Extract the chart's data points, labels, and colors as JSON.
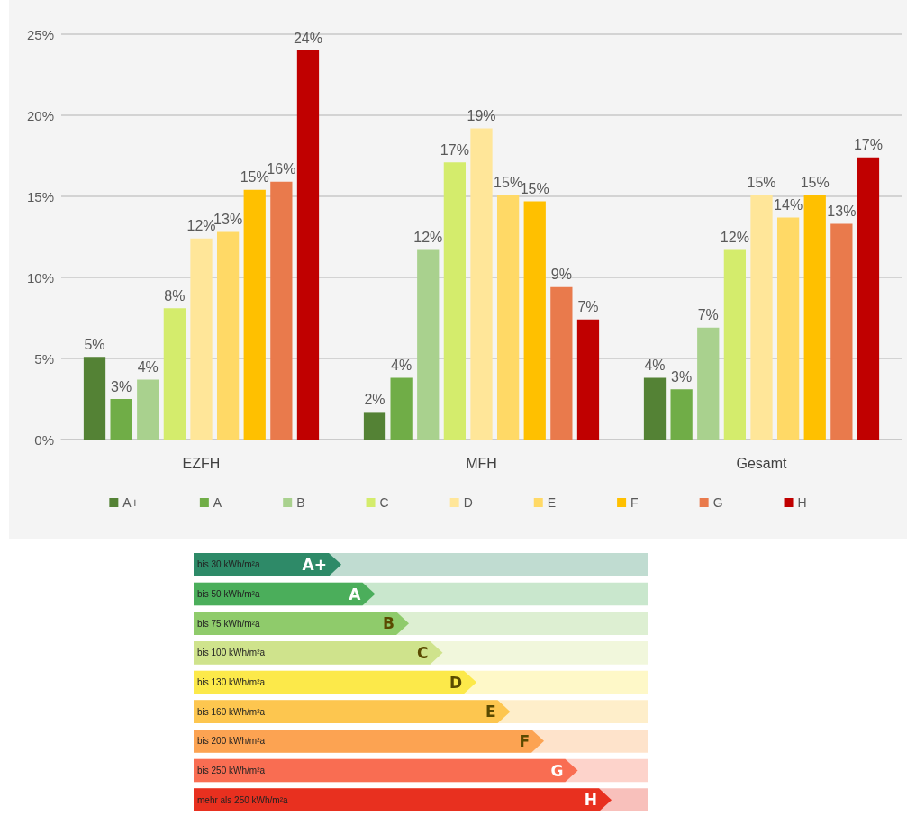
{
  "chart_data": [
    {
      "type": "bar",
      "categories": [
        "EZFH",
        "MFH",
        "Gesamt"
      ],
      "series": [
        {
          "name": "A+",
          "color": "#548235",
          "values": [
            5.1,
            1.7,
            3.8
          ],
          "value_labels": [
            "5%",
            "2%",
            "4%"
          ]
        },
        {
          "name": "A",
          "color": "#70ad47",
          "values": [
            2.5,
            3.8,
            3.1
          ],
          "value_labels": [
            "3%",
            "4%",
            "3%"
          ]
        },
        {
          "name": "B",
          "color": "#a9d18e",
          "values": [
            3.7,
            11.7,
            6.9
          ],
          "value_labels": [
            "4%",
            "12%",
            "7%"
          ]
        },
        {
          "name": "C",
          "color": "#d4ec6c",
          "values": [
            8.1,
            17.1,
            11.7
          ],
          "value_labels": [
            "8%",
            "17%",
            "12%"
          ]
        },
        {
          "name": "D",
          "color": "#ffe699",
          "values": [
            12.4,
            19.2,
            15.1
          ],
          "value_labels": [
            "12%",
            "19%",
            "15%"
          ]
        },
        {
          "name": "E",
          "color": "#ffd966",
          "values": [
            12.8,
            15.1,
            13.7
          ],
          "value_labels": [
            "13%",
            "15%",
            "14%"
          ]
        },
        {
          "name": "F",
          "color": "#ffc000",
          "values": [
            15.4,
            14.7,
            15.1
          ],
          "value_labels": [
            "15%",
            "15%",
            "15%"
          ]
        },
        {
          "name": "G",
          "color": "#e97a4c",
          "values": [
            15.9,
            9.4,
            13.3
          ],
          "value_labels": [
            "16%",
            "9%",
            "13%"
          ]
        },
        {
          "name": "H",
          "color": "#c00000",
          "values": [
            24.0,
            7.4,
            17.4
          ],
          "value_labels": [
            "24%",
            "7%",
            "17%"
          ]
        }
      ],
      "ylim": [
        0,
        25
      ],
      "yticks": [
        {
          "value": 0,
          "label": "0%"
        },
        {
          "value": 5,
          "label": "5%"
        },
        {
          "value": 10,
          "label": "10%"
        },
        {
          "value": 15,
          "label": "15%"
        },
        {
          "value": 20,
          "label": "20%"
        },
        {
          "value": 25,
          "label": "25%"
        }
      ],
      "grid": "y",
      "legend": "bottom"
    },
    {
      "type": "other",
      "categories": [
        "A+",
        "A",
        "B",
        "C",
        "D",
        "E",
        "F",
        "G",
        "H"
      ],
      "annotations": [
        "bis 30 kWh/m²a",
        "bis 50 kWh/m²a",
        "bis 75 kWh/m²a",
        "bis 100 kWh/m²a",
        "bis 130 kWh/m²a",
        "bis 160 kWh/m²a",
        "bis 200 kWh/m²a",
        "bis 250 kWh/m²a",
        "mehr als 250 kWh/m²a"
      ],
      "colors": [
        "#2e8a68",
        "#4bae5b",
        "#8fcb6b",
        "#cfe38c",
        "#fce94a",
        "#fdc64f",
        "#fca352",
        "#f96d52",
        "#e8301f"
      ]
    }
  ]
}
